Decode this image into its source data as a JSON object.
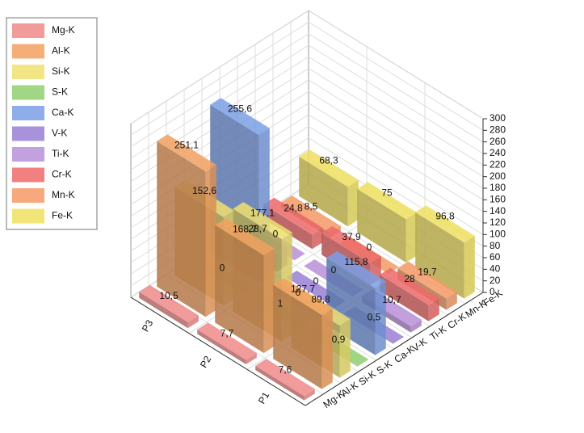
{
  "chart_data": {
    "type": "bar3d",
    "categories": [
      "P1",
      "P2",
      "P3"
    ],
    "series": [
      {
        "name": "Mg-K",
        "color": "#f08a8a",
        "values": [
          7.6,
          7.7,
          10.5
        ],
        "value_labels": [
          "7,6",
          "7,7",
          "10,5"
        ]
      },
      {
        "name": "Al-K",
        "color": "#f2a060",
        "values": [
          127.7,
          168.7,
          251.1
        ],
        "value_labels": [
          "127,7",
          "168,7",
          "251,1"
        ]
      },
      {
        "name": "Si-K",
        "color": "#efe070",
        "values": [
          89.8,
          177.1,
          152.6
        ],
        "value_labels": [
          "89,8",
          "177,1",
          "152,6"
        ]
      },
      {
        "name": "S-K",
        "color": "#8fcf6e",
        "values": [
          0.9,
          1,
          0
        ],
        "value_labels": [
          "0,9",
          "1",
          "0"
        ]
      },
      {
        "name": "Ca-K",
        "color": "#7b9fe6",
        "values": [
          115.8,
          0,
          255.6
        ],
        "value_labels": [
          "115,8",
          "0",
          "255,6"
        ]
      },
      {
        "name": "V-K",
        "color": "#9a7fd6",
        "values": [
          0.5,
          0,
          28.7
        ],
        "value_labels": [
          "0,5",
          "0",
          "28,7"
        ]
      },
      {
        "name": "Ti-K",
        "color": "#b98fd8",
        "values": [
          10.7,
          0,
          0
        ],
        "value_labels": [
          "10,7",
          "0",
          "0"
        ]
      },
      {
        "name": "Cr-K",
        "color": "#ee6a6a",
        "values": [
          28,
          37.9,
          24.8
        ],
        "value_labels": [
          "28",
          "37,9",
          "24,8"
        ]
      },
      {
        "name": "Mn-K",
        "color": "#f39a66",
        "values": [
          19.7,
          0,
          8.5
        ],
        "value_labels": [
          "19,7",
          "0",
          "8,5"
        ]
      },
      {
        "name": "Fe-K",
        "color": "#efe060",
        "values": [
          96.8,
          75,
          68.3
        ],
        "value_labels": [
          "96,8",
          "75",
          "68,3"
        ]
      }
    ],
    "ylim": [
      0,
      300
    ],
    "yticks": [
      0,
      20,
      40,
      60,
      80,
      100,
      120,
      140,
      160,
      180,
      200,
      220,
      240,
      260,
      280,
      300
    ],
    "grid": true,
    "legend": "top-left"
  }
}
